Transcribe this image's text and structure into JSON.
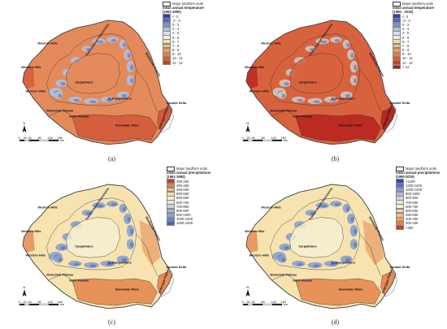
{
  "legend_common": {
    "units_label": "Major landform units"
  },
  "panels": [
    {
      "id": "a",
      "caption": "(a)",
      "legend": {
        "title": "mean annual temperature",
        "period": "(1961-1990)",
        "entries": [
          {
            "label": "< -2",
            "color": "#3a3fa0"
          },
          {
            "label": "-2 - 0",
            "color": "#5566b8"
          },
          {
            "label": "0 - 2",
            "color": "#7f93cc"
          },
          {
            "label": "2 - 4",
            "color": "#aebfdf"
          },
          {
            "label": "4 - 5",
            "color": "#d9e1ef"
          },
          {
            "label": "5 - 6",
            "color": "#f4f0d2"
          },
          {
            "label": "6 - 7",
            "color": "#f6dba9"
          },
          {
            "label": "7 - 8",
            "color": "#f3bf82"
          },
          {
            "label": "8 - 9",
            "color": "#ec9f63"
          },
          {
            "label": "9 - 10",
            "color": "#e2804c"
          },
          {
            "label": "10 - 11",
            "color": "#d5603a"
          },
          {
            "label": "11 - 12",
            "color": "#c2412b"
          }
        ]
      }
    },
    {
      "id": "b",
      "caption": "(b)",
      "legend": {
        "title": "mean annual temperature",
        "period": "(1990 - 2019)",
        "entries": [
          {
            "label": "< -2",
            "color": "#3a3fa0"
          },
          {
            "label": "-2 - 0",
            "color": "#5566b8"
          },
          {
            "label": "0 - 2",
            "color": "#7f93cc"
          },
          {
            "label": "2 - 4",
            "color": "#aebfdf"
          },
          {
            "label": "4 - 5",
            "color": "#d9e1ef"
          },
          {
            "label": "5 - 6",
            "color": "#f4f0d2"
          },
          {
            "label": "6 - 7",
            "color": "#f6dba9"
          },
          {
            "label": "7 - 8",
            "color": "#f3bf82"
          },
          {
            "label": "8 - 9",
            "color": "#ec9f63"
          },
          {
            "label": "9 - 10",
            "color": "#e2804c"
          },
          {
            "label": "10 - 11",
            "color": "#d5603a"
          },
          {
            "label": "11 - 12",
            "color": "#c2412b"
          },
          {
            "label": "> 12",
            "color": "#a11d1d"
          }
        ]
      }
    },
    {
      "id": "c",
      "caption": "(c)",
      "legend": {
        "title": "mean annual precipitations",
        "period": "(1961-1990)",
        "entries": [
          {
            "label": "300-400",
            "color": "#c2412b"
          },
          {
            "label": "400-450",
            "color": "#e2804c"
          },
          {
            "label": "450-500",
            "color": "#f3bf82"
          },
          {
            "label": "500-550",
            "color": "#f6dba9"
          },
          {
            "label": "550-600",
            "color": "#f4f0d2"
          },
          {
            "label": "600-700",
            "color": "#e6ead6"
          },
          {
            "label": "700-800",
            "color": "#c9d4e3"
          },
          {
            "label": "800-900",
            "color": "#a9bbdb"
          },
          {
            "label": "900-1000",
            "color": "#8aa0cf"
          },
          {
            "label": "1000-1200",
            "color": "#6b84c2"
          },
          {
            "label": "1200-1400",
            "color": "#4d66b2"
          }
        ]
      }
    },
    {
      "id": "d",
      "caption": "(d)",
      "legend": {
        "title": "mean annual precipitations",
        "period": "(1990-2019)",
        "entries": [
          {
            "label": ">1400",
            "color": "#3a3fd0"
          },
          {
            "label": "1200-1400",
            "color": "#5d70c4"
          },
          {
            "label": "1000-1200",
            "color": "#8aa0cf"
          },
          {
            "label": "900-1000",
            "color": "#a9bbdb"
          },
          {
            "label": "800-900",
            "color": "#c9d4e3"
          },
          {
            "label": "700-800",
            "color": "#e6ead6"
          },
          {
            "label": "600-700",
            "color": "#f4f0d2"
          },
          {
            "label": "500-600",
            "color": "#f6dba9"
          },
          {
            "label": "450-500",
            "color": "#f3bf82"
          },
          {
            "label": "400-450",
            "color": "#ec9f63"
          },
          {
            "label": "300-400",
            "color": "#e2804c"
          },
          {
            "label": "<300",
            "color": "#c2412b"
          }
        ]
      }
    }
  ],
  "map_labels": {
    "western_hills": "Western Hills",
    "carpathians": "Carpathians",
    "transylvanian": "Transylvanian Depression",
    "moldavian": "Moldavian Plateau",
    "subcarpathians": "Subcarpathians",
    "mehedinti": "Mehedinti Plateau",
    "getic": "Getic Plateau",
    "romanian_plain": "Romanian Plain",
    "dobrogea": "Dobrogea Plateau",
    "danube_delta": "Danube Delta"
  },
  "scale": {
    "ticks": [
      "0",
      "20",
      "40",
      "80",
      "120",
      "160"
    ],
    "unit": "km",
    "north": "N"
  },
  "palette": {
    "temp_base_a": "#e48a5a",
    "temp_cold_a": "#aebfdf",
    "temp_warm_a": "#d3593a",
    "temp_base_b": "#d9623e",
    "temp_cold_b": "#c9c9c0",
    "temp_warm_b": "#b8261f",
    "prec_base": "#f6e3b0",
    "prec_wet": "#8aa0cf",
    "prec_dry": "#e4884f"
  }
}
